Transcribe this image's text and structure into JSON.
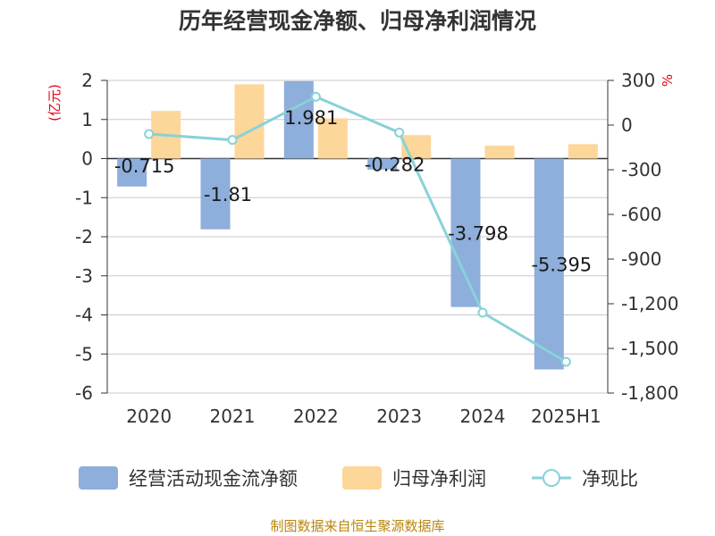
{
  "chart_data": {
    "type": "bar",
    "title": "历年经营现金净额、归母净利润情况",
    "categories": [
      "2020",
      "2021",
      "2022",
      "2023",
      "2024",
      "2025H1"
    ],
    "left_axis": {
      "unit": "(亿元)",
      "ylim": [
        -6,
        2
      ],
      "ticks": [
        "2",
        "1",
        "0",
        "-1",
        "-2",
        "-3",
        "-4",
        "-5",
        "-6"
      ]
    },
    "right_axis": {
      "unit": "%",
      "ylim": [
        -1800,
        300
      ],
      "ticks": [
        "300",
        "0",
        "-300",
        "-600",
        "-900",
        "-1,200",
        "-1,500",
        "-1,800"
      ]
    },
    "series": [
      {
        "name": "经营活动现金流净额",
        "type": "bar",
        "axis": "left",
        "color": "#8eaedb",
        "values": [
          -0.715,
          -1.81,
          1.981,
          -0.282,
          -3.798,
          -5.395
        ],
        "labels": [
          "-0.715",
          "-1.81",
          "1.981",
          "-0.282",
          "-3.798",
          "-5.395"
        ]
      },
      {
        "name": "归母净利润",
        "type": "bar",
        "axis": "left",
        "color": "#fdd69a",
        "values": [
          1.22,
          1.9,
          1.03,
          0.6,
          0.33,
          0.37
        ]
      },
      {
        "name": "净现比",
        "type": "line",
        "axis": "right",
        "color": "#88d2d8",
        "values": [
          -60,
          -100,
          190,
          -50,
          -1260,
          -1590
        ]
      }
    ],
    "grid": true,
    "legend_position": "bottom",
    "source": "制图数据来自恒生聚源数据库"
  }
}
